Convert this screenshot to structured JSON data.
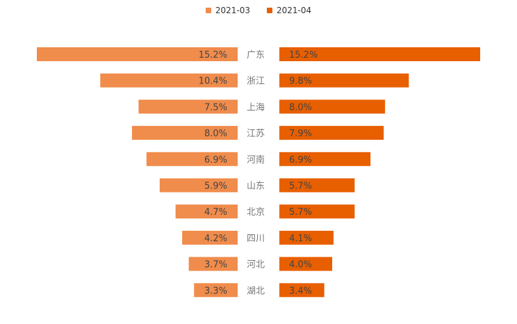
{
  "colors": {
    "series_left": "#F08C4C",
    "series_right": "#E85F00",
    "label_text": "#444444",
    "category_text": "#777777",
    "background": "#FFFFFF"
  },
  "legend_position": "top-center",
  "chart_data": {
    "type": "bar",
    "orientation": "horizontal-butterfly",
    "categories": [
      "广东",
      "浙江",
      "上海",
      "江苏",
      "河南",
      "山东",
      "北京",
      "四川",
      "河北",
      "湖北"
    ],
    "series": [
      {
        "name": "2021-03",
        "values": [
          15.2,
          10.4,
          7.5,
          8.0,
          6.9,
          5.9,
          4.7,
          4.2,
          3.7,
          3.3
        ],
        "labels": [
          "15.2%",
          "10.4%",
          "7.5%",
          "8.0%",
          "6.9%",
          "5.9%",
          "4.7%",
          "4.2%",
          "3.7%",
          "3.3%"
        ]
      },
      {
        "name": "2021-04",
        "values": [
          15.2,
          9.8,
          8.0,
          7.9,
          6.9,
          5.7,
          5.7,
          4.1,
          4.0,
          3.4
        ],
        "labels": [
          "15.2%",
          "9.8%",
          "8.0%",
          "7.9%",
          "6.9%",
          "5.7%",
          "5.7%",
          "4.1%",
          "4.0%",
          "3.4%"
        ]
      }
    ],
    "value_unit": "%",
    "xlim": [
      0,
      15.2
    ],
    "grid": false,
    "title": "",
    "xlabel": "",
    "ylabel": ""
  }
}
